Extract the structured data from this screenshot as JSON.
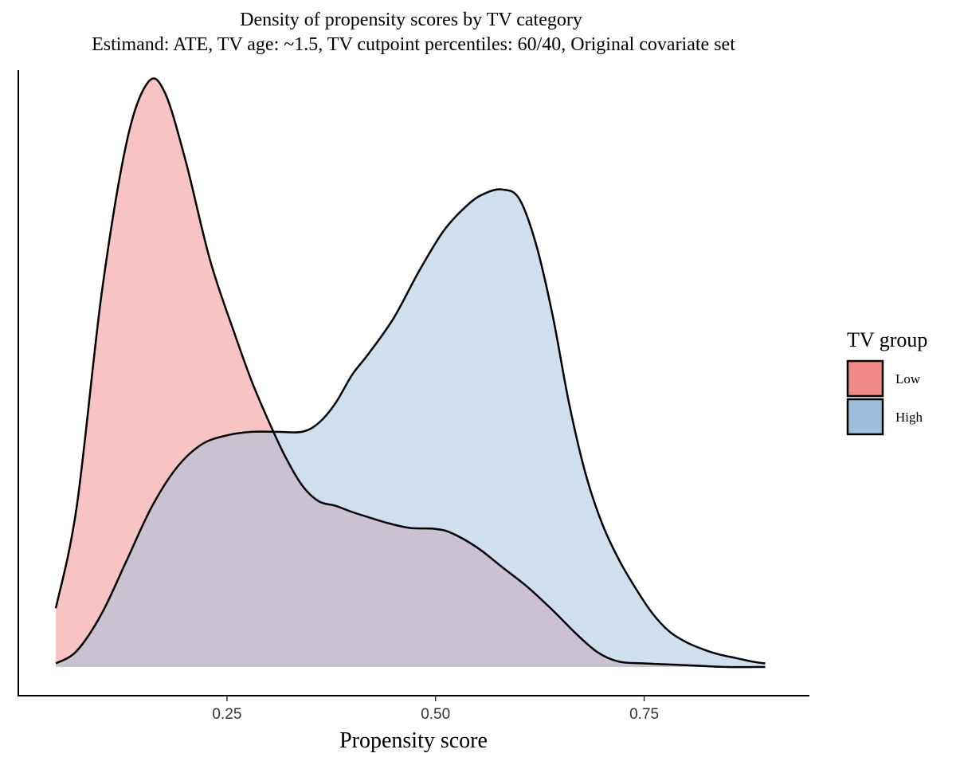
{
  "chart_data": {
    "type": "area",
    "title": "Density of propensity scores by TV category",
    "subtitle": "Estimand: ATE, TV age: ~1.5, TV cutpoint percentiles: 60/40, Original covariate set",
    "xlabel": "Propensity score",
    "ylabel": "",
    "xlim": [
      0.0,
      0.948
    ],
    "ylim": [
      0,
      3.35
    ],
    "x_ticks": [
      0.25,
      0.5,
      0.75
    ],
    "x_tick_labels": [
      "0.25",
      "0.50",
      "0.75"
    ],
    "grid": false,
    "legend_title": "TV group",
    "legend_position": "right",
    "series": [
      {
        "name": "Low",
        "color": "#F08A87",
        "points": [
          [
            0.045,
            0.33
          ],
          [
            0.07,
            0.9
          ],
          [
            0.1,
            2.1
          ],
          [
            0.13,
            2.95
          ],
          [
            0.155,
            3.28
          ],
          [
            0.175,
            3.23
          ],
          [
            0.2,
            2.85
          ],
          [
            0.23,
            2.28
          ],
          [
            0.26,
            1.86
          ],
          [
            0.28,
            1.6
          ],
          [
            0.3,
            1.38
          ],
          [
            0.32,
            1.18
          ],
          [
            0.34,
            1.02
          ],
          [
            0.36,
            0.93
          ],
          [
            0.38,
            0.905
          ],
          [
            0.4,
            0.87
          ],
          [
            0.42,
            0.84
          ],
          [
            0.445,
            0.805
          ],
          [
            0.47,
            0.78
          ],
          [
            0.5,
            0.775
          ],
          [
            0.52,
            0.75
          ],
          [
            0.55,
            0.67
          ],
          [
            0.58,
            0.56
          ],
          [
            0.61,
            0.45
          ],
          [
            0.64,
            0.32
          ],
          [
            0.67,
            0.18
          ],
          [
            0.695,
            0.08
          ],
          [
            0.72,
            0.03
          ],
          [
            0.75,
            0.02
          ],
          [
            0.8,
            0.01
          ],
          [
            0.85,
            0.0
          ],
          [
            0.895,
            0.0
          ]
        ]
      },
      {
        "name": "High",
        "color": "#9DBFDD",
        "points": [
          [
            0.045,
            0.02
          ],
          [
            0.07,
            0.09
          ],
          [
            0.1,
            0.3
          ],
          [
            0.13,
            0.6
          ],
          [
            0.16,
            0.9
          ],
          [
            0.19,
            1.12
          ],
          [
            0.22,
            1.25
          ],
          [
            0.25,
            1.3
          ],
          [
            0.28,
            1.32
          ],
          [
            0.31,
            1.32
          ],
          [
            0.34,
            1.32
          ],
          [
            0.36,
            1.37
          ],
          [
            0.38,
            1.48
          ],
          [
            0.4,
            1.64
          ],
          [
            0.42,
            1.76
          ],
          [
            0.45,
            1.96
          ],
          [
            0.48,
            2.22
          ],
          [
            0.51,
            2.45
          ],
          [
            0.54,
            2.6
          ],
          [
            0.56,
            2.66
          ],
          [
            0.58,
            2.68
          ],
          [
            0.6,
            2.63
          ],
          [
            0.62,
            2.38
          ],
          [
            0.64,
            1.98
          ],
          [
            0.66,
            1.48
          ],
          [
            0.68,
            1.08
          ],
          [
            0.7,
            0.8
          ],
          [
            0.72,
            0.6
          ],
          [
            0.74,
            0.44
          ],
          [
            0.76,
            0.3
          ],
          [
            0.78,
            0.2
          ],
          [
            0.8,
            0.14
          ],
          [
            0.82,
            0.1
          ],
          [
            0.84,
            0.07
          ],
          [
            0.86,
            0.05
          ],
          [
            0.88,
            0.03
          ],
          [
            0.895,
            0.02
          ]
        ]
      }
    ]
  }
}
